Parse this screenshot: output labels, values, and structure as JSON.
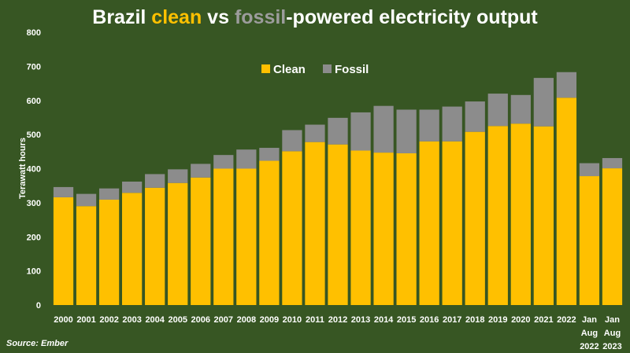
{
  "chart_data": {
    "type": "bar",
    "stacked": true,
    "title_parts": [
      {
        "text": "Brazil ",
        "color": "#ffffff"
      },
      {
        "text": "clean",
        "color": "#ffc000"
      },
      {
        "text": " vs ",
        "color": "#ffffff"
      },
      {
        "text": "fossil",
        "color": "#9c9c9c"
      },
      {
        "text": "-powered electricity output",
        "color": "#ffffff"
      }
    ],
    "ylabel": "Terawatt hours",
    "xlabel": "",
    "ylim": [
      0,
      800
    ],
    "yticks": [
      0,
      100,
      200,
      300,
      400,
      500,
      600,
      700,
      800
    ],
    "grid": false,
    "legend_position": "top-center",
    "categories": [
      [
        "2000"
      ],
      [
        "2001"
      ],
      [
        "2002"
      ],
      [
        "2003"
      ],
      [
        "2004"
      ],
      [
        "2005"
      ],
      [
        "2006"
      ],
      [
        "2007"
      ],
      [
        "2008"
      ],
      [
        "2009"
      ],
      [
        "2010"
      ],
      [
        "2011"
      ],
      [
        "2012"
      ],
      [
        "2013"
      ],
      [
        "2014"
      ],
      [
        "2015"
      ],
      [
        "2016"
      ],
      [
        "2017"
      ],
      [
        "2018"
      ],
      [
        "2019"
      ],
      [
        "2020"
      ],
      [
        "2021"
      ],
      [
        "2022"
      ],
      [
        "Jan",
        "Aug",
        "2022"
      ],
      [
        "Jan",
        "Aug",
        "2023"
      ]
    ],
    "series": [
      {
        "name": "Clean",
        "color": "#ffc000",
        "values": [
          316,
          290,
          309,
          329,
          344,
          358,
          374,
          400,
          400,
          423,
          451,
          478,
          471,
          453,
          447,
          445,
          480,
          480,
          508,
          525,
          532,
          524,
          608,
          378,
          401
        ]
      },
      {
        "name": "Fossil",
        "color": "#8c8c8c",
        "values": [
          30,
          36,
          33,
          33,
          40,
          40,
          40,
          40,
          56,
          38,
          62,
          51,
          78,
          112,
          137,
          128,
          93,
          102,
          89,
          95,
          84,
          142,
          75,
          38,
          30
        ]
      }
    ],
    "source": "Source: Ember"
  }
}
